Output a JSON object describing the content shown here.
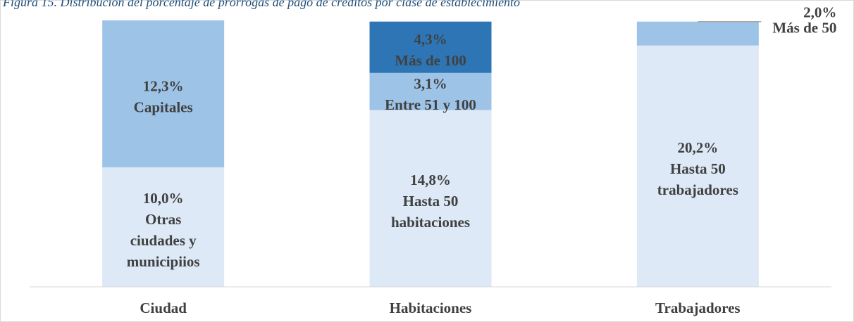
{
  "chart_data": {
    "type": "stacked_bar",
    "title": "Figura 15. Distribución del porcentaje de prórrogas de pago de créditos por clase de establecimiento",
    "categories": [
      "Ciudad",
      "Habitaciones",
      "Trabajadores"
    ],
    "stacks": [
      [
        {
          "value": 10.0,
          "value_label": "10,0%",
          "label": [
            "Otras",
            "ciudades y",
            "municipiios"
          ],
          "color": "#dde9f6"
        },
        {
          "value": 12.3,
          "value_label": "12,3%",
          "label": [
            "Capitales"
          ],
          "color": "#9dc3e6"
        }
      ],
      [
        {
          "value": 14.8,
          "value_label": "14,8%",
          "label": [
            "Hasta 50",
            "habitaciones"
          ],
          "color": "#dde9f6"
        },
        {
          "value": 3.1,
          "value_label": "3,1%",
          "label": [
            "Entre 51 y 100"
          ],
          "color": "#9dc3e6"
        },
        {
          "value": 4.3,
          "value_label": "4,3%",
          "label": [
            "Más de 100"
          ],
          "color": "#2e75b6"
        }
      ],
      [
        {
          "value": 20.2,
          "value_label": "20,2%",
          "label": [
            "Hasta 50",
            "trabajadores"
          ],
          "color": "#dde9f6"
        },
        {
          "value": 2.0,
          "value_label": "2,0%",
          "label": [
            "Más de 50"
          ],
          "color": "#9dc3e6"
        }
      ]
    ]
  }
}
